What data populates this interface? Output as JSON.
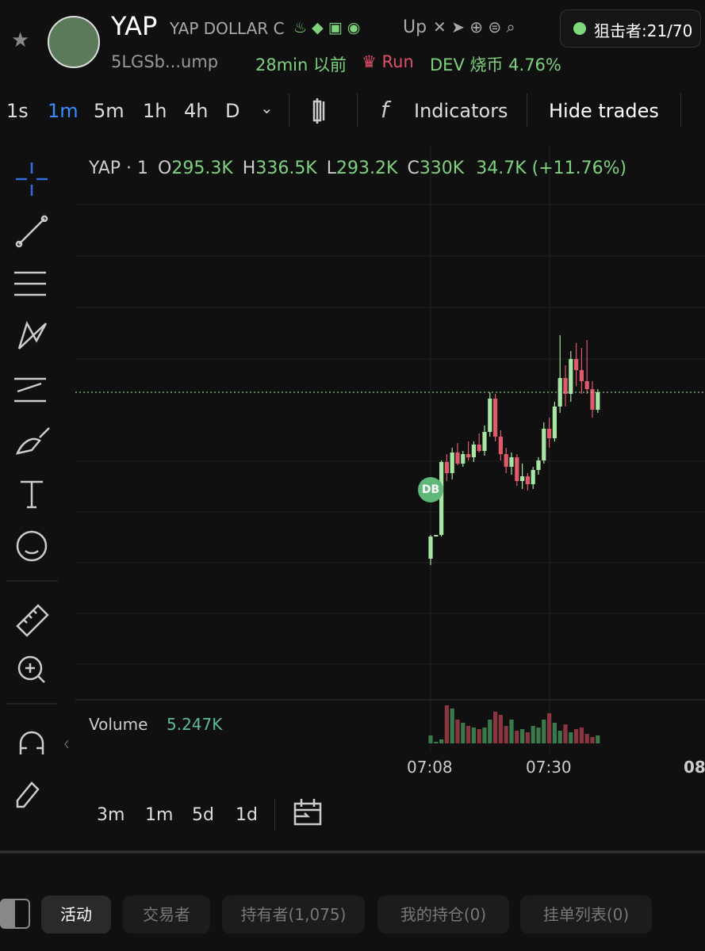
{
  "header": {
    "symbol": "YAP",
    "name": "YAP DOLLAR C",
    "up": "Up",
    "address": "5LGSb...ump",
    "age": "28min 以前",
    "run": "Run",
    "dev": "DEV 烧币 4.76%",
    "snipers": "狙击者:21/70"
  },
  "toolbar": {
    "intervals": [
      "1s",
      "1m",
      "5m",
      "1h",
      "4h",
      "D"
    ],
    "indicators": "Indicators",
    "hide_trades": "Hide trades"
  },
  "chart": {
    "legend": {
      "title": "YAP · 1",
      "ohlc": [
        {
          "label": "O",
          "value": "295.3K"
        },
        {
          "label": "H",
          "value": "336.5K"
        },
        {
          "label": "L",
          "value": "293.2K"
        },
        {
          "label": "C",
          "value": "330K"
        }
      ],
      "change": "34.7K (+11.76%)"
    },
    "marker": "DB",
    "volume_label": "Volume",
    "volume_value": "5.247K",
    "times": [
      "07:08",
      "07:30",
      "08"
    ],
    "ylim": [
      137,
      487
    ],
    "vlim": [
      0,
      60
    ],
    "candles": [
      {
        "o": 226,
        "h": 241,
        "l": 222,
        "c": 240
      },
      {
        "o": 240,
        "h": 241,
        "l": 240,
        "c": 241
      },
      {
        "o": 241,
        "h": 288,
        "l": 240,
        "c": 287
      },
      {
        "o": 287,
        "h": 292,
        "l": 275,
        "c": 280
      },
      {
        "o": 280,
        "h": 296,
        "l": 276,
        "c": 293
      },
      {
        "o": 293,
        "h": 299,
        "l": 285,
        "c": 286
      },
      {
        "o": 286,
        "h": 294,
        "l": 284,
        "c": 292
      },
      {
        "o": 292,
        "h": 300,
        "l": 288,
        "c": 290
      },
      {
        "o": 290,
        "h": 300,
        "l": 287,
        "c": 298
      },
      {
        "o": 298,
        "h": 305,
        "l": 293,
        "c": 294
      },
      {
        "o": 294,
        "h": 310,
        "l": 291,
        "c": 306
      },
      {
        "o": 306,
        "h": 331,
        "l": 303,
        "c": 327
      },
      {
        "o": 327,
        "h": 330,
        "l": 300,
        "c": 303
      },
      {
        "o": 303,
        "h": 307,
        "l": 288,
        "c": 292
      },
      {
        "o": 292,
        "h": 296,
        "l": 280,
        "c": 284
      },
      {
        "o": 284,
        "h": 293,
        "l": 279,
        "c": 290
      },
      {
        "o": 290,
        "h": 292,
        "l": 272,
        "c": 275
      },
      {
        "o": 275,
        "h": 286,
        "l": 270,
        "c": 278
      },
      {
        "o": 278,
        "h": 280,
        "l": 269,
        "c": 273
      },
      {
        "o": 273,
        "h": 284,
        "l": 270,
        "c": 282
      },
      {
        "o": 282,
        "h": 290,
        "l": 279,
        "c": 288
      },
      {
        "o": 288,
        "h": 312,
        "l": 286,
        "c": 308
      },
      {
        "o": 308,
        "h": 315,
        "l": 296,
        "c": 302
      },
      {
        "o": 302,
        "h": 325,
        "l": 300,
        "c": 322
      },
      {
        "o": 322,
        "h": 367,
        "l": 318,
        "c": 340
      },
      {
        "o": 340,
        "h": 348,
        "l": 322,
        "c": 330
      },
      {
        "o": 330,
        "h": 357,
        "l": 325,
        "c": 352
      },
      {
        "o": 352,
        "h": 362,
        "l": 335,
        "c": 345
      },
      {
        "o": 345,
        "h": 359,
        "l": 330,
        "c": 338
      },
      {
        "o": 338,
        "h": 364,
        "l": 330,
        "c": 333
      },
      {
        "o": 333,
        "h": 338,
        "l": 315,
        "c": 320
      },
      {
        "o": 320,
        "h": 333,
        "l": 318,
        "c": 331
      }
    ],
    "volumes": [
      10,
      2,
      5,
      48,
      44,
      30,
      26,
      22,
      20,
      18,
      20,
      30,
      40,
      36,
      22,
      30,
      16,
      18,
      14,
      22,
      20,
      30,
      38,
      26,
      16,
      24,
      14,
      18,
      20,
      12,
      8,
      10
    ],
    "up_color": "#a8e6a3",
    "down_color": "#e05a6a"
  },
  "ranges": [
    "3m",
    "1m",
    "5d",
    "1d"
  ],
  "tabs": [
    "活动",
    "交易者",
    "持有者(1,075)",
    "我的持仓(0)",
    "挂单列表(0)"
  ]
}
